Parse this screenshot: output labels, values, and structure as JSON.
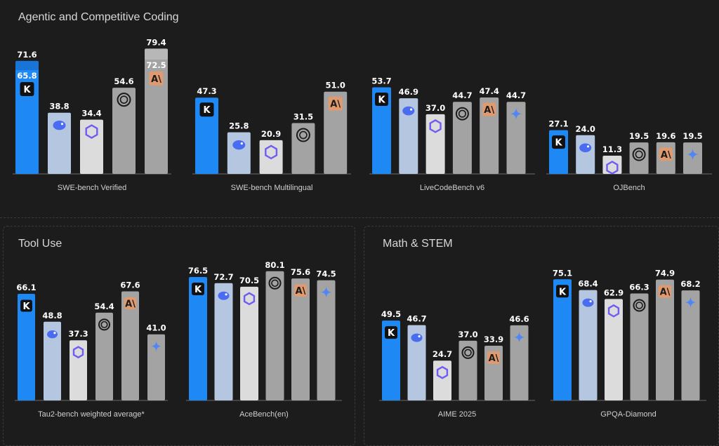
{
  "sections": {
    "coding": "Agentic and Competitive Coding",
    "tool": "Tool Use",
    "math": "Math & STEM"
  },
  "colors": {
    "kimi": "#1e88f5",
    "deepseek": "#b4c6e0",
    "qwen": "#dcdcdc",
    "openai": "#a3a3a3",
    "anthropic": "#a3a3a3",
    "gemini": "#a3a3a3",
    "anthropic_icon_bg": "#e09a70",
    "kimi_secondary": "#1565c0",
    "claude_secondary": "#c9c9c9"
  },
  "chart_data": [
    {
      "type": "bar",
      "xlabel": "SWE-bench Verified",
      "ylim": [
        0,
        80
      ],
      "series": [
        {
          "model": "kimi",
          "values": [
            71.6
          ],
          "secondary": 65.8
        },
        {
          "model": "deepseek",
          "values": [
            38.8
          ]
        },
        {
          "model": "qwen",
          "values": [
            34.4
          ]
        },
        {
          "model": "openai",
          "values": [
            54.6
          ]
        },
        {
          "model": "anthropic",
          "values": [
            79.4
          ],
          "secondary": 72.5
        }
      ]
    },
    {
      "type": "bar",
      "xlabel": "SWE-bench Multilingual",
      "ylim": [
        0,
        80
      ],
      "series": [
        {
          "model": "kimi",
          "values": [
            47.3
          ]
        },
        {
          "model": "deepseek",
          "values": [
            25.8
          ]
        },
        {
          "model": "qwen",
          "values": [
            20.9
          ]
        },
        {
          "model": "openai",
          "values": [
            31.5
          ]
        },
        {
          "model": "anthropic",
          "values": [
            51.0
          ]
        }
      ]
    },
    {
      "type": "bar",
      "xlabel": "LiveCodeBench v6",
      "ylim": [
        0,
        80
      ],
      "series": [
        {
          "model": "kimi",
          "values": [
            53.7
          ]
        },
        {
          "model": "deepseek",
          "values": [
            46.9
          ]
        },
        {
          "model": "qwen",
          "values": [
            37.0
          ]
        },
        {
          "model": "openai",
          "values": [
            44.7
          ]
        },
        {
          "model": "anthropic",
          "values": [
            47.4
          ]
        },
        {
          "model": "gemini",
          "values": [
            44.7
          ]
        }
      ]
    },
    {
      "type": "bar",
      "xlabel": "OJBench",
      "ylim": [
        0,
        80
      ],
      "series": [
        {
          "model": "kimi",
          "values": [
            27.1
          ]
        },
        {
          "model": "deepseek",
          "values": [
            24.0
          ]
        },
        {
          "model": "qwen",
          "values": [
            11.3
          ]
        },
        {
          "model": "openai",
          "values": [
            19.5
          ]
        },
        {
          "model": "anthropic",
          "values": [
            19.6
          ]
        },
        {
          "model": "gemini",
          "values": [
            19.5
          ]
        }
      ]
    },
    {
      "type": "bar",
      "xlabel": "Tau2-bench weighted average*",
      "ylim": [
        0,
        80
      ],
      "series": [
        {
          "model": "kimi",
          "values": [
            66.1
          ]
        },
        {
          "model": "deepseek",
          "values": [
            48.8
          ]
        },
        {
          "model": "qwen",
          "values": [
            37.3
          ]
        },
        {
          "model": "openai",
          "values": [
            54.4
          ]
        },
        {
          "model": "anthropic",
          "values": [
            67.6
          ]
        },
        {
          "model": "gemini",
          "values": [
            41.0
          ]
        }
      ]
    },
    {
      "type": "bar",
      "xlabel": "AceBench(en)",
      "ylim": [
        0,
        80
      ],
      "series": [
        {
          "model": "kimi",
          "values": [
            76.5
          ]
        },
        {
          "model": "deepseek",
          "values": [
            72.7
          ]
        },
        {
          "model": "qwen",
          "values": [
            70.5
          ]
        },
        {
          "model": "openai",
          "values": [
            80.1
          ]
        },
        {
          "model": "anthropic",
          "values": [
            75.6
          ]
        },
        {
          "model": "gemini",
          "values": [
            74.5
          ]
        }
      ]
    },
    {
      "type": "bar",
      "xlabel": "AIME 2025",
      "ylim": [
        0,
        80
      ],
      "series": [
        {
          "model": "kimi",
          "values": [
            49.5
          ]
        },
        {
          "model": "deepseek",
          "values": [
            46.7
          ]
        },
        {
          "model": "qwen",
          "values": [
            24.7
          ]
        },
        {
          "model": "openai",
          "values": [
            37.0
          ]
        },
        {
          "model": "anthropic",
          "values": [
            33.9
          ]
        },
        {
          "model": "gemini",
          "values": [
            46.6
          ]
        }
      ]
    },
    {
      "type": "bar",
      "xlabel": "GPQA-Diamond",
      "ylim": [
        0,
        80
      ],
      "series": [
        {
          "model": "kimi",
          "values": [
            75.1
          ]
        },
        {
          "model": "deepseek",
          "values": [
            68.4
          ]
        },
        {
          "model": "qwen",
          "values": [
            62.9
          ]
        },
        {
          "model": "openai",
          "values": [
            66.3
          ]
        },
        {
          "model": "anthropic",
          "values": [
            74.9
          ]
        },
        {
          "model": "gemini",
          "values": [
            68.2
          ]
        }
      ]
    }
  ]
}
